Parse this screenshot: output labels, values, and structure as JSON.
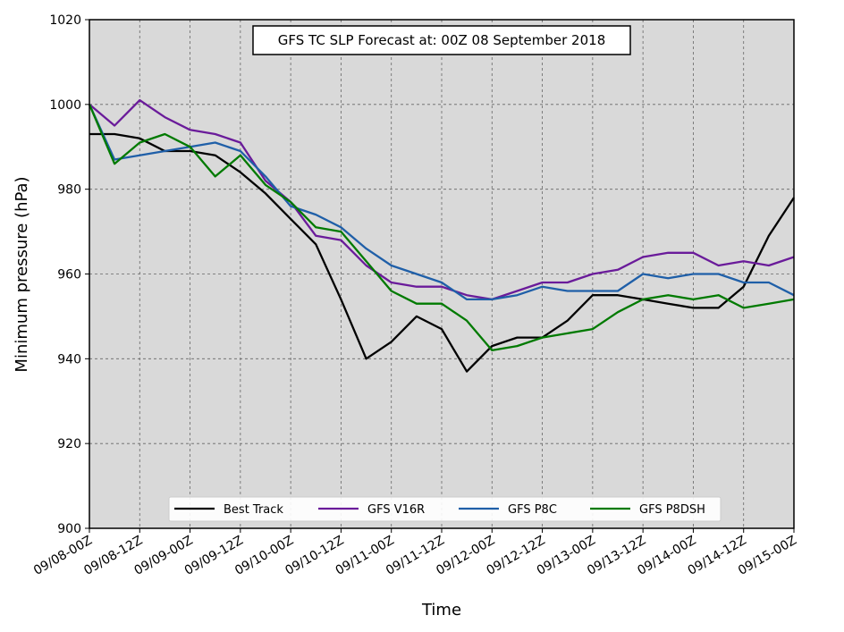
{
  "chart_data": {
    "type": "line",
    "title": "GFS TC SLP Forecast at: 00Z 08 September 2018",
    "xlabel": "Time",
    "ylabel": "Minimum pressure (hPa)",
    "ylim": [
      900,
      1020
    ],
    "yticks": [
      900,
      920,
      940,
      960,
      980,
      1000,
      1020
    ],
    "x": [
      "09/08-00Z",
      "09/08-06Z",
      "09/08-12Z",
      "09/08-18Z",
      "09/09-00Z",
      "09/09-06Z",
      "09/09-12Z",
      "09/09-18Z",
      "09/10-00Z",
      "09/10-06Z",
      "09/10-12Z",
      "09/10-18Z",
      "09/11-00Z",
      "09/11-06Z",
      "09/11-12Z",
      "09/11-18Z",
      "09/12-00Z",
      "09/12-06Z",
      "09/12-12Z",
      "09/12-18Z",
      "09/13-00Z",
      "09/13-06Z",
      "09/13-12Z",
      "09/13-18Z",
      "09/14-00Z",
      "09/14-06Z",
      "09/14-12Z",
      "09/14-18Z",
      "09/15-00Z"
    ],
    "xtick_labels": [
      "09/08-00Z",
      "09/08-12Z",
      "09/09-00Z",
      "09/09-12Z",
      "09/10-00Z",
      "09/10-12Z",
      "09/11-00Z",
      "09/11-12Z",
      "09/12-00Z",
      "09/12-12Z",
      "09/13-00Z",
      "09/13-12Z",
      "09/14-00Z",
      "09/14-12Z",
      "09/15-00Z"
    ],
    "grid": true,
    "legend_position": "bottom-center",
    "background": "#d9d9d9",
    "series": [
      {
        "name": "Best Track",
        "color": "#000000",
        "values": [
          993,
          993,
          992,
          989,
          989,
          988,
          984,
          979,
          973,
          967,
          954,
          940,
          944,
          950,
          947,
          937,
          943,
          945,
          945,
          949,
          955,
          955,
          954,
          953,
          952,
          952,
          957,
          969,
          978
        ]
      },
      {
        "name": "GFS V16R",
        "color": "#6a1b9a",
        "values": [
          1000,
          995,
          1001,
          997,
          994,
          993,
          991,
          982,
          977,
          969,
          968,
          962,
          958,
          957,
          957,
          955,
          954,
          956,
          958,
          958,
          960,
          961,
          964,
          965,
          965,
          962,
          963,
          962,
          964
        ]
      },
      {
        "name": "GFS P8C",
        "color": "#1f5fa8",
        "values": [
          1000,
          987,
          988,
          989,
          990,
          991,
          989,
          983,
          976,
          974,
          971,
          966,
          962,
          960,
          958,
          954,
          954,
          955,
          957,
          956,
          956,
          956,
          960,
          959,
          960,
          960,
          958,
          958,
          955
        ]
      },
      {
        "name": "GFS P8DSH",
        "color": "#007a00",
        "values": [
          1000,
          986,
          991,
          993,
          990,
          983,
          988,
          981,
          977,
          971,
          970,
          963,
          956,
          953,
          953,
          949,
          942,
          943,
          945,
          946,
          947,
          951,
          954,
          955,
          954,
          955,
          952,
          953,
          954
        ]
      }
    ]
  }
}
